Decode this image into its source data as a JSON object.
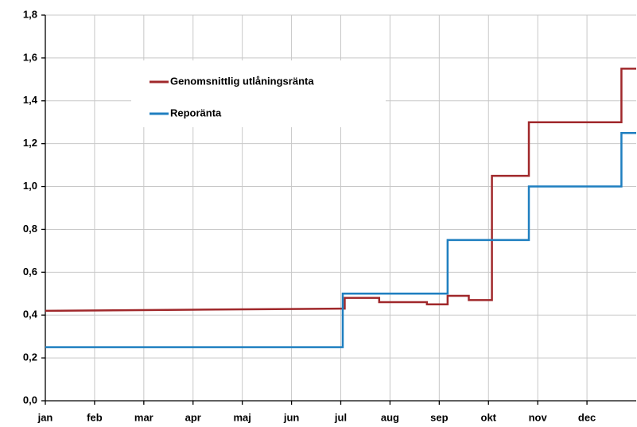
{
  "chart_data": {
    "type": "line",
    "xlim": [
      0,
      12
    ],
    "xticks": [
      {
        "value": 0,
        "label": "jan"
      },
      {
        "value": 1,
        "label": "feb"
      },
      {
        "value": 2,
        "label": "mar"
      },
      {
        "value": 3,
        "label": "apr"
      },
      {
        "value": 4,
        "label": "maj"
      },
      {
        "value": 5,
        "label": "jun"
      },
      {
        "value": 6,
        "label": "jul"
      },
      {
        "value": 7,
        "label": "aug"
      },
      {
        "value": 8,
        "label": "sep"
      },
      {
        "value": 9,
        "label": "okt"
      },
      {
        "value": 10,
        "label": "nov"
      },
      {
        "value": 11,
        "label": "dec"
      }
    ],
    "ylim": [
      0,
      1.8
    ],
    "yticks": [
      {
        "value": 0,
        "label": "0,0"
      },
      {
        "value": 0.2,
        "label": "0,2"
      },
      {
        "value": 0.4,
        "label": "0,4"
      },
      {
        "value": 0.6,
        "label": "0,6"
      },
      {
        "value": 0.8,
        "label": "0,8"
      },
      {
        "value": 1.0,
        "label": "1,0"
      },
      {
        "value": 1.2,
        "label": "1,2"
      },
      {
        "value": 1.4,
        "label": "1,4"
      },
      {
        "value": 1.6,
        "label": "1,6"
      },
      {
        "value": 1.8,
        "label": "1,8"
      }
    ],
    "grid": true,
    "legend": "upper left",
    "series": [
      {
        "name": "Genomsnittlig utlåningsränta",
        "color": "#a0282b",
        "x": [
          0,
          3,
          6.0,
          6.08,
          6.08,
          6.78,
          6.78,
          7.75,
          7.75,
          8.17,
          8.17,
          8.6,
          8.6,
          9.07,
          9.07,
          9.82,
          9.82,
          11.7,
          11.7,
          12
        ],
        "values": [
          0.42,
          0.425,
          0.43,
          0.43,
          0.48,
          0.48,
          0.46,
          0.46,
          0.45,
          0.45,
          0.49,
          0.49,
          0.47,
          0.47,
          1.05,
          1.05,
          1.3,
          1.3,
          1.55,
          1.55
        ]
      },
      {
        "name": "Reporänta",
        "color": "#1f7fc0",
        "x": [
          0,
          6.04,
          6.04,
          8.17,
          8.17,
          9.82,
          9.82,
          11.7,
          11.7,
          12
        ],
        "values": [
          0.25,
          0.25,
          0.5,
          0.5,
          0.75,
          0.75,
          1.0,
          1.0,
          1.25,
          1.25
        ]
      }
    ]
  }
}
